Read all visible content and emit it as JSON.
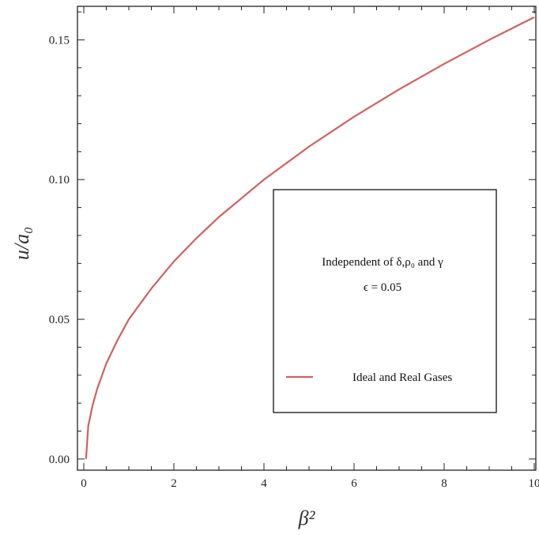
{
  "chart_data": {
    "type": "line",
    "xlabel": "β²",
    "ylabel": "u/a₀",
    "xlim": [
      0,
      10
    ],
    "ylim": [
      -0.004,
      0.162
    ],
    "x_ticks": [
      "0",
      "2",
      "4",
      "6",
      "8",
      "10"
    ],
    "y_ticks": [
      "0.00",
      "0.05",
      "0.10",
      "0.15"
    ],
    "grid": false,
    "series": [
      {
        "name": "Ideal and Real Gases",
        "color": "#d06060",
        "x": [
          0.05,
          0.1,
          0.2,
          0.3,
          0.5,
          0.75,
          1.0,
          1.5,
          2.0,
          2.5,
          3.0,
          4.0,
          5.0,
          6.0,
          7.0,
          8.0,
          9.0,
          10.0
        ],
        "y": [
          0.0,
          0.0119,
          0.0195,
          0.0252,
          0.0342,
          0.0426,
          0.05,
          0.061,
          0.0707,
          0.079,
          0.0866,
          0.1,
          0.1118,
          0.1225,
          0.1323,
          0.1414,
          0.15,
          0.1581
        ]
      }
    ],
    "legend": {
      "position": "center-right",
      "title_line1": "Independent of δ,ρ₀ and γ",
      "title_line2": "ϵ = 0.05",
      "entry": "Ideal and Real Gases"
    }
  }
}
